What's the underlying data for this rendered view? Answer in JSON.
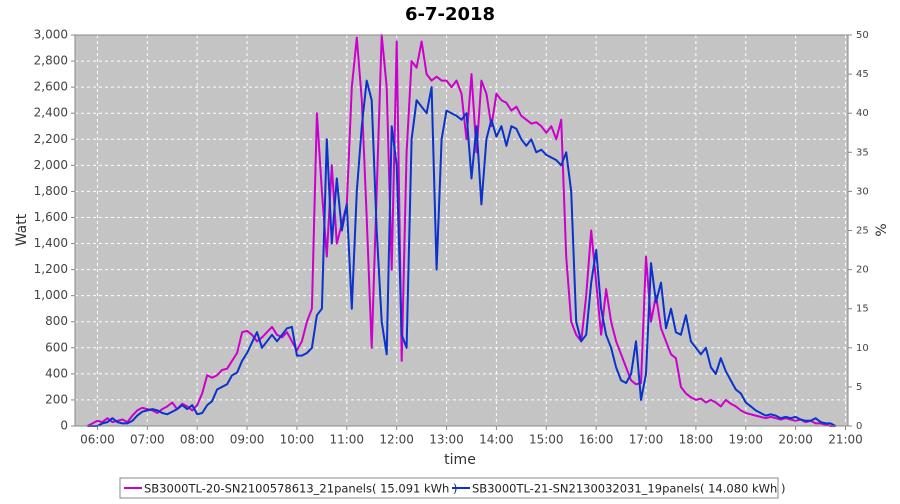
{
  "chart_data": {
    "type": "line",
    "title": "6-7-2018",
    "x_label": "time",
    "y_label": "Watt",
    "y2_label": "%",
    "grid": true,
    "xlim": [
      5.55,
      21.05
    ],
    "xticks": [
      {
        "value": 6,
        "label": "06:00"
      },
      {
        "value": 7,
        "label": "07:00"
      },
      {
        "value": 8,
        "label": "08:00"
      },
      {
        "value": 9,
        "label": "09:00"
      },
      {
        "value": 10,
        "label": "10:00"
      },
      {
        "value": 11,
        "label": "11:00"
      },
      {
        "value": 12,
        "label": "12:00"
      },
      {
        "value": 13,
        "label": "13:00"
      },
      {
        "value": 14,
        "label": "14:00"
      },
      {
        "value": 15,
        "label": "15:00"
      },
      {
        "value": 16,
        "label": "16:00"
      },
      {
        "value": 17,
        "label": "17:00"
      },
      {
        "value": 18,
        "label": "18:00"
      },
      {
        "value": 19,
        "label": "19:00"
      },
      {
        "value": 20,
        "label": "20:00"
      },
      {
        "value": 21,
        "label": "21:00"
      }
    ],
    "ylim": [
      0,
      3000
    ],
    "yticks": [
      0,
      200,
      400,
      600,
      800,
      {
        "value": 1000,
        "label": "1,000"
      },
      {
        "value": 1200,
        "label": "1,200"
      },
      {
        "value": 1400,
        "label": "1,400"
      },
      {
        "value": 1600,
        "label": "1,600"
      },
      {
        "value": 1800,
        "label": "1,800"
      },
      {
        "value": 2000,
        "label": "2,000"
      },
      {
        "value": 2200,
        "label": "2,200"
      },
      {
        "value": 2400,
        "label": "2,400"
      },
      {
        "value": 2600,
        "label": "2,600"
      },
      {
        "value": 2800,
        "label": "2,800"
      },
      {
        "value": 3000,
        "label": "3,000"
      }
    ],
    "y2lim": [
      0,
      50
    ],
    "y2ticks": [
      0,
      5,
      10,
      15,
      20,
      25,
      30,
      35,
      40,
      45,
      50
    ],
    "x": [
      5.8,
      5.9,
      6.0,
      6.1,
      6.2,
      6.3,
      6.4,
      6.5,
      6.6,
      6.7,
      6.8,
      6.9,
      7.0,
      7.1,
      7.2,
      7.3,
      7.4,
      7.5,
      7.6,
      7.7,
      7.8,
      7.9,
      8.0,
      8.1,
      8.2,
      8.3,
      8.4,
      8.5,
      8.6,
      8.7,
      8.8,
      8.9,
      9.0,
      9.1,
      9.2,
      9.3,
      9.4,
      9.5,
      9.6,
      9.7,
      9.8,
      9.9,
      10.0,
      10.1,
      10.2,
      10.3,
      10.4,
      10.5,
      10.6,
      10.7,
      10.8,
      10.9,
      11.0,
      11.1,
      11.2,
      11.3,
      11.4,
      11.5,
      11.6,
      11.7,
      11.8,
      11.9,
      12.0,
      12.1,
      12.2,
      12.3,
      12.4,
      12.5,
      12.6,
      12.7,
      12.8,
      12.9,
      13.0,
      13.1,
      13.2,
      13.3,
      13.4,
      13.5,
      13.6,
      13.7,
      13.8,
      13.9,
      14.0,
      14.1,
      14.2,
      14.3,
      14.4,
      14.5,
      14.6,
      14.7,
      14.8,
      14.9,
      15.0,
      15.1,
      15.2,
      15.3,
      15.4,
      15.5,
      15.6,
      15.7,
      15.8,
      15.9,
      16.0,
      16.1,
      16.2,
      16.3,
      16.4,
      16.5,
      16.6,
      16.7,
      16.8,
      16.9,
      17.0,
      17.1,
      17.2,
      17.3,
      17.4,
      17.5,
      17.6,
      17.7,
      17.8,
      17.9,
      18.0,
      18.1,
      18.2,
      18.3,
      18.4,
      18.5,
      18.6,
      18.7,
      18.8,
      18.9,
      19.0,
      19.1,
      19.2,
      19.3,
      19.4,
      19.5,
      19.6,
      19.7,
      19.8,
      19.9,
      20.0,
      20.1,
      20.2,
      20.3,
      20.4,
      20.5,
      20.6,
      20.7,
      20.8
    ],
    "series": [
      {
        "name": "SB3000TL-20-SN2100578613_21panels( 15.091 kWh )",
        "color": "#cc00cc",
        "values": [
          0,
          20,
          40,
          30,
          60,
          30,
          40,
          50,
          30,
          80,
          120,
          140,
          130,
          120,
          100,
          130,
          150,
          180,
          130,
          170,
          150,
          120,
          160,
          250,
          390,
          370,
          390,
          430,
          440,
          500,
          560,
          720,
          730,
          700,
          650,
          680,
          720,
          760,
          700,
          680,
          720,
          650,
          580,
          650,
          800,
          900,
          2400,
          1800,
          1300,
          2000,
          1400,
          1550,
          1700,
          2600,
          2980,
          2500,
          1600,
          600,
          1800,
          3000,
          2600,
          1200,
          2950,
          500,
          2100,
          2800,
          2750,
          2950,
          2700,
          2650,
          2680,
          2650,
          2650,
          2600,
          2650,
          2550,
          2200,
          2700,
          2100,
          2650,
          2550,
          2300,
          2550,
          2500,
          2480,
          2420,
          2450,
          2380,
          2350,
          2320,
          2330,
          2300,
          2250,
          2300,
          2200,
          2350,
          1300,
          800,
          700,
          650,
          1000,
          1500,
          1100,
          700,
          1050,
          800,
          650,
          550,
          450,
          350,
          320,
          330,
          1300,
          800,
          1000,
          750,
          650,
          550,
          520,
          300,
          250,
          220,
          200,
          210,
          180,
          200,
          180,
          150,
          200,
          170,
          150,
          120,
          100,
          90,
          80,
          70,
          60,
          70,
          60,
          50,
          60,
          50,
          40,
          50,
          30,
          40,
          20,
          20,
          10,
          0,
          0
        ]
      },
      {
        "name": "SB3000TL-21-SN2130032031_19panels( 14.080 kWh )",
        "color": "#0a32cc",
        "values": [
          0,
          0,
          0,
          20,
          30,
          60,
          30,
          20,
          20,
          40,
          80,
          110,
          120,
          130,
          120,
          100,
          90,
          110,
          130,
          160,
          130,
          160,
          90,
          100,
          160,
          190,
          280,
          300,
          320,
          390,
          410,
          500,
          560,
          640,
          720,
          600,
          650,
          700,
          650,
          700,
          750,
          760,
          540,
          540,
          560,
          600,
          850,
          900,
          2200,
          1400,
          1900,
          1500,
          1700,
          900,
          1800,
          2300,
          2650,
          2500,
          1500,
          800,
          550,
          2300,
          2000,
          700,
          600,
          2200,
          2500,
          2450,
          2400,
          2600,
          1200,
          2200,
          2420,
          2400,
          2380,
          2350,
          2400,
          1900,
          2300,
          1700,
          2200,
          2350,
          2220,
          2300,
          2150,
          2300,
          2280,
          2200,
          2150,
          2200,
          2100,
          2120,
          2080,
          2060,
          2040,
          2000,
          2100,
          1800,
          800,
          650,
          700,
          1100,
          1350,
          900,
          700,
          600,
          450,
          350,
          330,
          400,
          650,
          200,
          400,
          1250,
          950,
          1100,
          750,
          900,
          720,
          700,
          850,
          650,
          600,
          550,
          600,
          450,
          400,
          520,
          420,
          350,
          280,
          250,
          180,
          150,
          120,
          100,
          80,
          90,
          80,
          60,
          70,
          60,
          70,
          50,
          40,
          40,
          60,
          30,
          20,
          20,
          0
        ]
      }
    ]
  }
}
